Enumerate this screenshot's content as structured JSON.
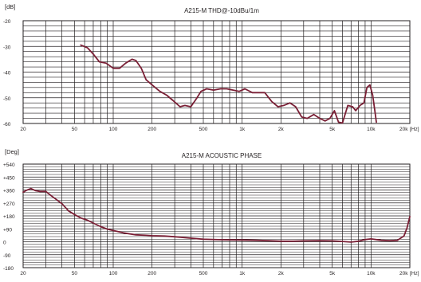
{
  "chart_data": [
    {
      "type": "line",
      "title": "A215-M   THD@-10dBu/1m",
      "ylabel": "[dB]",
      "xlabel": "[Hz]",
      "x_scale": "log",
      "xlim": [
        20,
        20000
      ],
      "ylim": [
        -60,
        -20
      ],
      "x_ticks": [
        {
          "value": 20,
          "label": "20"
        },
        {
          "value": 50,
          "label": "50"
        },
        {
          "value": 100,
          "label": "100"
        },
        {
          "value": 200,
          "label": "200"
        },
        {
          "value": 500,
          "label": "500"
        },
        {
          "value": 1000,
          "label": "1k"
        },
        {
          "value": 2000,
          "label": "2k"
        },
        {
          "value": 5000,
          "label": "5k"
        },
        {
          "value": 10000,
          "label": "10k"
        },
        {
          "value": 20000,
          "label": "20k"
        }
      ],
      "y_ticks": [
        {
          "value": -20,
          "label": "-20"
        },
        {
          "value": -30,
          "label": "-30"
        },
        {
          "value": -40,
          "label": "-40"
        },
        {
          "value": -50,
          "label": "-50"
        },
        {
          "value": -60,
          "label": "-60"
        }
      ],
      "grid": true,
      "line_color": "#7a1f35",
      "series": [
        {
          "x": [
            56,
            63,
            70,
            78,
            88,
            100,
            112,
            125,
            140,
            150,
            165,
            180,
            200,
            230,
            260,
            290,
            330,
            360,
            400,
            440,
            480,
            530,
            600,
            680,
            760,
            850,
            950,
            1050,
            1200,
            1350,
            1500,
            1700,
            1900,
            2100,
            2350,
            2600,
            2900,
            3200,
            3600,
            4000,
            4400,
            4800,
            5200,
            5600,
            6000,
            6600,
            7200,
            7600,
            8200,
            8800,
            9300,
            9800,
            10300,
            10700,
            11000
          ],
          "y": [
            -29.5,
            -30.5,
            -33,
            -36,
            -36.5,
            -38.5,
            -38.5,
            -36.5,
            -35,
            -35.5,
            -38.5,
            -43,
            -45,
            -47.5,
            -49,
            -51,
            -53.5,
            -53,
            -53.5,
            -50.5,
            -47.5,
            -46.5,
            -47,
            -46.5,
            -46.5,
            -47,
            -47.5,
            -46.5,
            -48,
            -48,
            -48,
            -51.5,
            -53.5,
            -53,
            -52,
            -53.5,
            -57.5,
            -58,
            -56.5,
            -58,
            -59,
            -58,
            -55,
            -59.5,
            -59.8,
            -53,
            -53.5,
            -55,
            -53,
            -52,
            -46,
            -45,
            -49,
            -55,
            -59.5
          ]
        }
      ]
    },
    {
      "type": "line",
      "title": "A215-M   ACOUSTIC PHASE",
      "ylabel": "[Deg]",
      "xlabel": "[Hz]",
      "x_scale": "log",
      "xlim": [
        20,
        20000
      ],
      "ylim": [
        -180,
        540
      ],
      "x_ticks": [
        {
          "value": 20,
          "label": "20"
        },
        {
          "value": 50,
          "label": "50"
        },
        {
          "value": 100,
          "label": "100"
        },
        {
          "value": 200,
          "label": "200"
        },
        {
          "value": 500,
          "label": "500"
        },
        {
          "value": 1000,
          "label": "1k"
        },
        {
          "value": 2000,
          "label": "2k"
        },
        {
          "value": 5000,
          "label": "5k"
        },
        {
          "value": 10000,
          "label": "10k"
        },
        {
          "value": 20000,
          "label": "20k"
        }
      ],
      "y_ticks": [
        {
          "value": 540,
          "label": "+540"
        },
        {
          "value": 450,
          "label": "+450"
        },
        {
          "value": 360,
          "label": "+360"
        },
        {
          "value": 270,
          "label": "+270"
        },
        {
          "value": 180,
          "label": "+180"
        },
        {
          "value": 90,
          "label": "+90"
        },
        {
          "value": 0,
          "label": "0"
        },
        {
          "value": -90,
          "label": "-90"
        },
        {
          "value": -180,
          "label": "-180"
        }
      ],
      "grid": true,
      "line_color": "#7a1f35",
      "series": [
        {
          "x": [
            20,
            21.5,
            23,
            25,
            27,
            30,
            33,
            36,
            40,
            45,
            50,
            56,
            63,
            70,
            80,
            90,
            100,
            120,
            150,
            180,
            200,
            250,
            300,
            400,
            500,
            700,
            1000,
            1300,
            1600,
            2000,
            2500,
            3000,
            4000,
            5000,
            6000,
            7000,
            8000,
            9000,
            10000,
            11000,
            12000,
            14000,
            16000,
            18000,
            19000,
            20000
          ],
          "y": [
            345,
            360,
            370,
            355,
            350,
            350,
            320,
            295,
            265,
            215,
            190,
            165,
            150,
            130,
            105,
            88,
            78,
            62,
            48,
            45,
            42,
            40,
            35,
            25,
            18,
            14,
            12,
            10,
            8,
            4,
            4,
            6,
            8,
            6,
            2,
            -2,
            4,
            15,
            20,
            15,
            10,
            8,
            10,
            40,
            95,
            175
          ]
        }
      ]
    }
  ]
}
